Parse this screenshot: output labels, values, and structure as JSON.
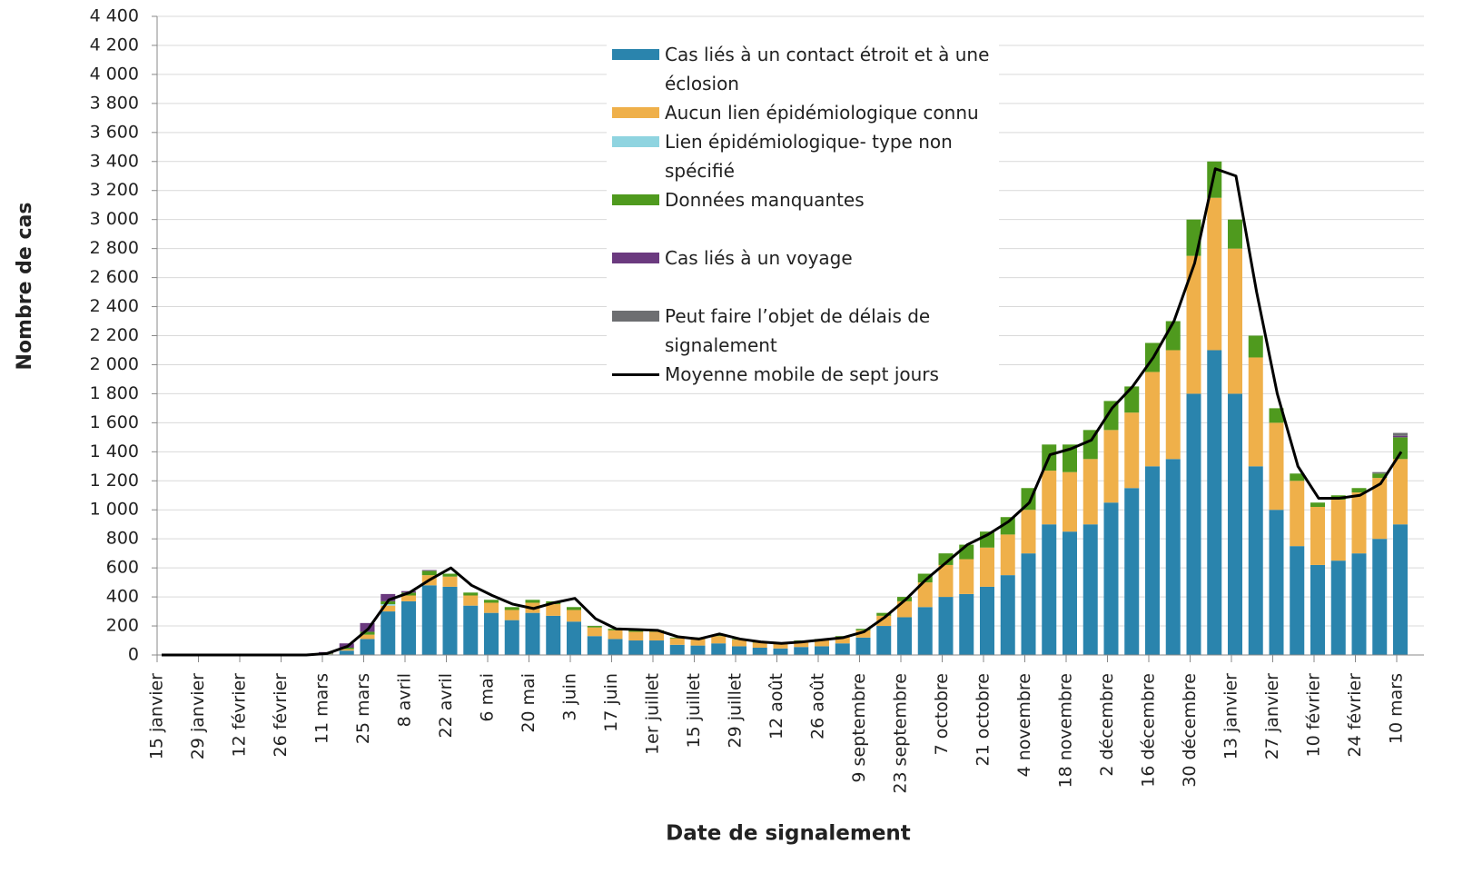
{
  "chart_data": {
    "type": "bar",
    "stacked": true,
    "y_label": "Nombre de cas",
    "x_label": "Date de signalement",
    "categories": [
      "15 janvier",
      null,
      "29 janvier",
      null,
      "12 février",
      null,
      "26 février",
      null,
      "11 mars",
      null,
      "25 mars",
      null,
      "8 avril",
      null,
      "22 avril",
      null,
      "6 mai",
      null,
      "20 mai",
      null,
      "3 juin",
      null,
      "17 juin",
      null,
      "1er juillet",
      null,
      "15 juillet",
      null,
      "29 juillet",
      null,
      "12 août",
      null,
      "26 août",
      null,
      "9 septembre",
      null,
      "23 septembre",
      null,
      "7 octobre",
      null,
      "21 octobre",
      null,
      "4 novembre",
      null,
      "18 novembre",
      null,
      "2 décembre",
      null,
      "16 décembre",
      null,
      "30 décembre",
      null,
      "13 janvier",
      null,
      "27 janvier",
      null,
      "10 février",
      null,
      "24 février",
      null,
      "10 mars"
    ],
    "series": [
      {
        "name": "Cas liés à un contact étroit et à une éclosion",
        "color": "#2a84ad",
        "values": [
          0,
          0,
          0,
          0,
          0,
          0,
          0,
          0,
          5,
          30,
          110,
          300,
          370,
          480,
          470,
          340,
          290,
          240,
          290,
          270,
          230,
          130,
          110,
          100,
          100,
          70,
          65,
          80,
          60,
          50,
          45,
          55,
          60,
          80,
          120,
          200,
          260,
          330,
          400,
          420,
          470,
          550,
          700,
          900,
          850,
          900,
          1050,
          1150,
          1300,
          1350,
          1800,
          2100,
          1800,
          1300,
          1000,
          750,
          620,
          650,
          700,
          800,
          900
        ]
      },
      {
        "name": "Aucun lien épidémiologique connu",
        "color": "#efb04a",
        "values": [
          0,
          0,
          0,
          0,
          0,
          0,
          0,
          0,
          2,
          10,
          30,
          40,
          40,
          70,
          70,
          70,
          70,
          70,
          70,
          80,
          80,
          60,
          60,
          60,
          60,
          45,
          45,
          50,
          45,
          35,
          30,
          40,
          45,
          45,
          50,
          70,
          110,
          170,
          220,
          240,
          270,
          280,
          300,
          370,
          410,
          450,
          500,
          520,
          650,
          750,
          950,
          1050,
          1000,
          750,
          600,
          450,
          400,
          420,
          420,
          420,
          450
        ]
      },
      {
        "name": "Lien épidémiologique- type non spécifié",
        "color": "#8fd4e0",
        "values": [
          0,
          0,
          0,
          0,
          0,
          0,
          0,
          0,
          0,
          0,
          0,
          10,
          0,
          0,
          0,
          0,
          0,
          0,
          0,
          0,
          0,
          0,
          0,
          0,
          0,
          0,
          0,
          0,
          0,
          0,
          0,
          0,
          0,
          0,
          0,
          0,
          0,
          0,
          0,
          0,
          0,
          0,
          0,
          0,
          0,
          0,
          0,
          0,
          0,
          0,
          0,
          0,
          0,
          0,
          0,
          0,
          0,
          0,
          0,
          0,
          0
        ]
      },
      {
        "name": "Données manquantes",
        "color": "#4f9a1e",
        "values": [
          0,
          0,
          0,
          0,
          0,
          0,
          0,
          0,
          3,
          10,
          20,
          20,
          20,
          30,
          20,
          20,
          20,
          20,
          20,
          20,
          20,
          10,
          10,
          10,
          10,
          5,
          10,
          10,
          5,
          5,
          5,
          5,
          5,
          5,
          10,
          20,
          30,
          60,
          80,
          100,
          110,
          120,
          150,
          180,
          190,
          200,
          200,
          180,
          200,
          200,
          250,
          250,
          200,
          150,
          100,
          50,
          30,
          30,
          30,
          30,
          150
        ]
      },
      {
        "name": "Cas liés à un voyage",
        "color": "#6b3a7f",
        "values": [
          0,
          0,
          0,
          0,
          0,
          0,
          0,
          0,
          10,
          30,
          60,
          50,
          10,
          5,
          0,
          0,
          0,
          0,
          0,
          0,
          0,
          0,
          0,
          0,
          0,
          0,
          0,
          0,
          0,
          0,
          0,
          0,
          0,
          0,
          0,
          0,
          0,
          0,
          0,
          0,
          0,
          0,
          0,
          0,
          0,
          0,
          0,
          0,
          0,
          0,
          0,
          0,
          0,
          0,
          0,
          0,
          0,
          0,
          0,
          0,
          10
        ]
      },
      {
        "name": "Peut faire l’objet de délais de signalement",
        "color": "#6d6e71",
        "values": [
          0,
          0,
          0,
          0,
          0,
          0,
          0,
          0,
          0,
          0,
          0,
          0,
          0,
          0,
          0,
          0,
          0,
          0,
          0,
          0,
          0,
          0,
          0,
          0,
          0,
          0,
          0,
          0,
          0,
          0,
          0,
          0,
          0,
          0,
          0,
          0,
          0,
          0,
          0,
          0,
          0,
          0,
          0,
          0,
          0,
          0,
          0,
          0,
          0,
          0,
          0,
          0,
          0,
          0,
          0,
          0,
          0,
          0,
          0,
          10,
          20
        ]
      },
      {
        "name": "Moyenne mobile de sept jours",
        "color": "#000000",
        "type": "line",
        "values": [
          0,
          0,
          0,
          0,
          0,
          0,
          0,
          0,
          10,
          60,
          180,
          380,
          430,
          520,
          600,
          480,
          410,
          350,
          320,
          360,
          390,
          250,
          180,
          175,
          170,
          125,
          110,
          145,
          110,
          90,
          80,
          90,
          105,
          120,
          160,
          260,
          380,
          520,
          640,
          760,
          830,
          920,
          1050,
          1380,
          1420,
          1480,
          1700,
          1850,
          2050,
          2300,
          2700,
          3350,
          3300,
          2500,
          1800,
          1300,
          1080,
          1080,
          1100,
          1180,
          1400
        ]
      }
    ],
    "ylim": [
      0,
      4400
    ],
    "yticks": [
      0,
      200,
      400,
      600,
      800,
      {
        "value": 1000,
        "label": "1 000"
      },
      {
        "value": 1200,
        "label": "1 200"
      },
      {
        "value": 1400,
        "label": "1 400"
      },
      {
        "value": 1600,
        "label": "1 600"
      },
      {
        "value": 1800,
        "label": "1 800"
      },
      {
        "value": 2000,
        "label": "2 000"
      },
      {
        "value": 2200,
        "label": "2 200"
      },
      {
        "value": 2400,
        "label": "2 400"
      },
      {
        "value": 2600,
        "label": "2 600"
      },
      {
        "value": 2800,
        "label": "2 800"
      },
      {
        "value": 3000,
        "label": "3 000"
      },
      {
        "value": 3200,
        "label": "3 200"
      },
      {
        "value": 3400,
        "label": "3 400"
      },
      {
        "value": 3600,
        "label": "3 600"
      },
      {
        "value": 3800,
        "label": "3 800"
      },
      {
        "value": 4000,
        "label": "4 000"
      },
      {
        "value": 4200,
        "label": "4 200"
      },
      {
        "value": 4400,
        "label": "4 400"
      }
    ],
    "grid": true,
    "legend": "top-center"
  }
}
